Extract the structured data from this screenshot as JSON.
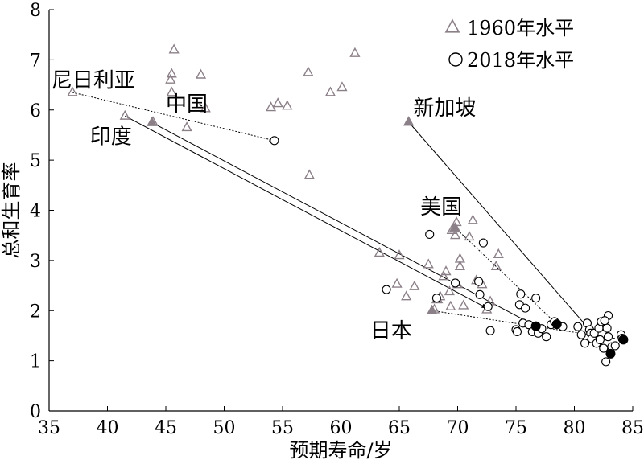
{
  "chart_data": {
    "type": "scatter",
    "xlabel": "预期寿命/岁",
    "ylabel": "总和生育率",
    "xlim": [
      35,
      85
    ],
    "ylim": [
      0,
      8
    ],
    "xticks": [
      "35",
      "40",
      "45",
      "50",
      "55",
      "60",
      "65",
      "70",
      "75",
      "80",
      "85"
    ],
    "yticks": [
      "0",
      "1",
      "2",
      "3",
      "4",
      "5",
      "6",
      "7",
      "8"
    ],
    "grid": false,
    "legend_position": "top-right",
    "legend": [
      "1960年水平",
      "2018年水平"
    ],
    "series": [
      {
        "name": "1960年水平",
        "marker": "triangle",
        "color": "#8c8088",
        "points": [
          [
            37.0,
            6.35
          ],
          [
            41.5,
            5.88
          ],
          [
            43.9,
            5.76
          ],
          [
            45.4,
            6.6
          ],
          [
            45.5,
            6.35
          ],
          [
            45.5,
            6.72
          ],
          [
            45.7,
            7.2
          ],
          [
            46.8,
            5.65
          ],
          [
            48.0,
            6.7
          ],
          [
            48.4,
            6.03
          ],
          [
            54.0,
            6.05
          ],
          [
            54.6,
            6.13
          ],
          [
            55.4,
            6.08
          ],
          [
            57.2,
            6.75
          ],
          [
            57.3,
            4.7
          ],
          [
            59.1,
            6.35
          ],
          [
            60.1,
            6.45
          ],
          [
            61.2,
            7.13
          ],
          [
            63.3,
            3.15
          ],
          [
            64.8,
            2.53
          ],
          [
            65.0,
            3.1
          ],
          [
            65.6,
            2.28
          ],
          [
            65.8,
            5.76
          ],
          [
            66.3,
            2.48
          ],
          [
            67.5,
            2.92
          ],
          [
            67.8,
            2.0
          ],
          [
            68.0,
            2.02
          ],
          [
            68.2,
            2.22
          ],
          [
            68.5,
            2.28
          ],
          [
            68.8,
            2.68
          ],
          [
            69.0,
            2.78
          ],
          [
            69.4,
            2.08
          ],
          [
            69.5,
            3.6
          ],
          [
            69.7,
            3.63
          ],
          [
            69.8,
            3.5
          ],
          [
            69.9,
            3.76
          ],
          [
            70.0,
            2.52
          ],
          [
            70.2,
            2.88
          ],
          [
            70.2,
            3.03
          ],
          [
            70.5,
            2.1
          ],
          [
            71.0,
            3.47
          ],
          [
            71.3,
            3.8
          ],
          [
            71.6,
            2.6
          ],
          [
            72.1,
            2.52
          ],
          [
            72.5,
            2.02
          ],
          [
            72.8,
            2.18
          ],
          [
            73.3,
            2.88
          ],
          [
            73.5,
            3.12
          ],
          [
            69.3,
            2.38
          ],
          [
            68.3,
            2.22
          ]
        ]
      },
      {
        "name": "2018年水平",
        "marker": "circle",
        "color": "#000000",
        "points": [
          [
            54.3,
            5.39
          ],
          [
            63.9,
            2.42
          ],
          [
            67.6,
            3.52
          ],
          [
            68.2,
            2.25
          ],
          [
            69.8,
            2.55
          ],
          [
            71.8,
            2.58
          ],
          [
            71.9,
            2.32
          ],
          [
            72.2,
            3.35
          ],
          [
            72.6,
            2.08
          ],
          [
            72.8,
            1.6
          ],
          [
            75.0,
            1.62
          ],
          [
            75.1,
            1.58
          ],
          [
            75.3,
            2.12
          ],
          [
            75.4,
            2.33
          ],
          [
            75.6,
            1.75
          ],
          [
            75.8,
            2.05
          ],
          [
            76.1,
            1.72
          ],
          [
            76.4,
            1.58
          ],
          [
            76.7,
            2.25
          ],
          [
            76.9,
            1.55
          ],
          [
            77.2,
            1.64
          ],
          [
            77.6,
            1.48
          ],
          [
            78.0,
            1.72
          ],
          [
            78.3,
            1.78
          ],
          [
            78.5,
            1.73
          ],
          [
            79.0,
            1.68
          ],
          [
            80.3,
            1.68
          ],
          [
            80.6,
            1.52
          ],
          [
            80.9,
            1.35
          ],
          [
            81.1,
            1.75
          ],
          [
            81.3,
            1.62
          ],
          [
            81.4,
            1.55
          ],
          [
            81.5,
            1.44
          ],
          [
            81.7,
            1.55
          ],
          [
            81.9,
            1.35
          ],
          [
            82.1,
            1.65
          ],
          [
            82.2,
            1.42
          ],
          [
            82.3,
            1.78
          ],
          [
            82.5,
            1.25
          ],
          [
            82.7,
            0.98
          ],
          [
            82.8,
            1.65
          ],
          [
            82.9,
            1.9
          ],
          [
            82.9,
            1.48
          ],
          [
            83.2,
            1.28
          ],
          [
            83.5,
            1.3
          ],
          [
            84.0,
            1.52
          ],
          [
            84.1,
            1.45
          ],
          [
            82.6,
            1.8
          ]
        ]
      }
    ],
    "highlighted_1960": [
      {
        "country": "中国",
        "x": 43.8,
        "y": 5.75
      },
      {
        "country": "新加坡",
        "x": 65.8,
        "y": 5.76
      },
      {
        "country": "美国",
        "x": 69.8,
        "y": 3.65
      },
      {
        "country": "日本",
        "x": 67.8,
        "y": 2.0
      }
    ],
    "highlighted_2018": [
      {
        "country": "中国",
        "x": 76.7,
        "y": 1.69
      },
      {
        "country": "美国",
        "x": 78.5,
        "y": 1.73
      },
      {
        "country": "日本",
        "x": 84.2,
        "y": 1.42
      },
      {
        "country": "新加坡",
        "x": 83.1,
        "y": 1.14
      }
    ],
    "arrows": [
      {
        "from": [
          37.0,
          6.35
        ],
        "to": [
          54.3,
          5.39
        ],
        "style": "dotted"
      },
      {
        "from": [
          43.8,
          5.75
        ],
        "to": [
          76.7,
          1.69
        ],
        "style": "solid"
      },
      {
        "from": [
          41.5,
          5.88
        ],
        "to": [
          72.5,
          2.05
        ],
        "style": "solid"
      },
      {
        "from": [
          65.8,
          5.76
        ],
        "to": [
          83.1,
          1.14
        ],
        "style": "solid"
      },
      {
        "from": [
          69.8,
          3.65
        ],
        "to": [
          78.5,
          1.73
        ],
        "style": "dotted"
      },
      {
        "from": [
          67.8,
          2.0
        ],
        "to": [
          84.2,
          1.42
        ],
        "style": "dotted"
      }
    ],
    "annotations": [
      {
        "text": "尼日利亚",
        "x": 35.2,
        "y": 6.45
      },
      {
        "text": "中国",
        "x": 45.0,
        "y": 5.98
      },
      {
        "text": "印度",
        "x": 38.5,
        "y": 5.33
      },
      {
        "text": "新加坡",
        "x": 66.2,
        "y": 5.9
      },
      {
        "text": "美国",
        "x": 66.8,
        "y": 3.93
      },
      {
        "text": "日本",
        "x": 62.5,
        "y": 1.46
      }
    ]
  }
}
